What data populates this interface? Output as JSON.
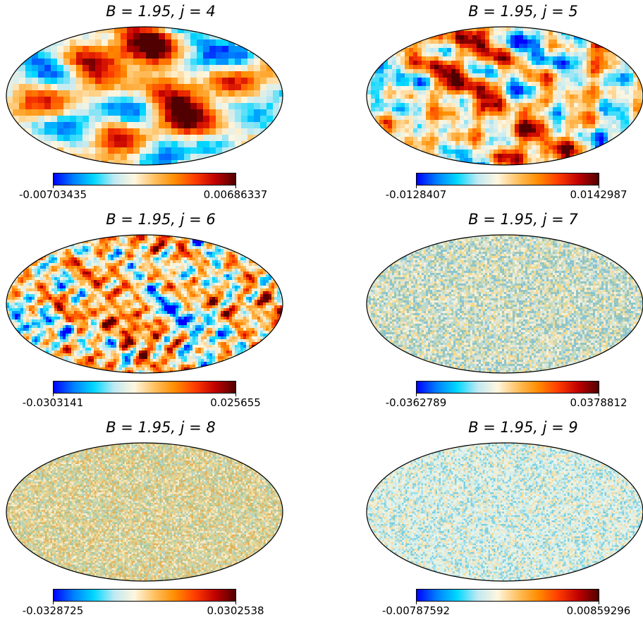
{
  "chart_data": [
    {
      "type": "heatmap",
      "title_prefix": "B = 1.95, ",
      "title_j": "j = 4",
      "colorbar": {
        "min_label": "-0.00703435",
        "max_label": "0.00686337",
        "min": -0.00703435,
        "max": 0.00686337
      },
      "projection": "mollweide",
      "feature_scale": "large"
    },
    {
      "type": "heatmap",
      "title_prefix": "B = 1.95, ",
      "title_j": "j = 5",
      "colorbar": {
        "min_label": "-0.0128407",
        "max_label": "0.0142987",
        "min": -0.0128407,
        "max": 0.0142987
      },
      "projection": "mollweide",
      "feature_scale": "medium"
    },
    {
      "type": "heatmap",
      "title_prefix": "B = 1.95, ",
      "title_j": "j = 6",
      "colorbar": {
        "min_label": "-0.0303141",
        "max_label": "0.025655",
        "min": -0.0303141,
        "max": 0.025655
      },
      "projection": "mollweide",
      "feature_scale": "small"
    },
    {
      "type": "heatmap",
      "title_prefix": "B = 1.95, ",
      "title_j": "j = 7",
      "colorbar": {
        "min_label": "-0.0362789",
        "max_label": "0.0378812",
        "min": -0.0362789,
        "max": 0.0378812
      },
      "projection": "mollweide",
      "feature_scale": "fine"
    },
    {
      "type": "heatmap",
      "title_prefix": "B = 1.95, ",
      "title_j": "j = 8",
      "colorbar": {
        "min_label": "-0.0328725",
        "max_label": "0.0302538",
        "min": -0.0328725,
        "max": 0.0302538
      },
      "projection": "mollweide",
      "feature_scale": "very fine"
    },
    {
      "type": "heatmap",
      "title_prefix": "B = 1.95, ",
      "title_j": "j = 9",
      "colorbar": {
        "min_label": "-0.00787592",
        "max_label": "0.00859296",
        "min": -0.00787592,
        "max": 0.00859296
      },
      "projection": "mollweide",
      "feature_scale": "finest"
    }
  ],
  "colormap": [
    "#0000ff",
    "#0080ff",
    "#00d8ff",
    "#bfe9f2",
    "#fff6df",
    "#ffc060",
    "#ff8c00",
    "#ff3c00",
    "#c00000",
    "#500000"
  ],
  "outline_color": "#000000"
}
